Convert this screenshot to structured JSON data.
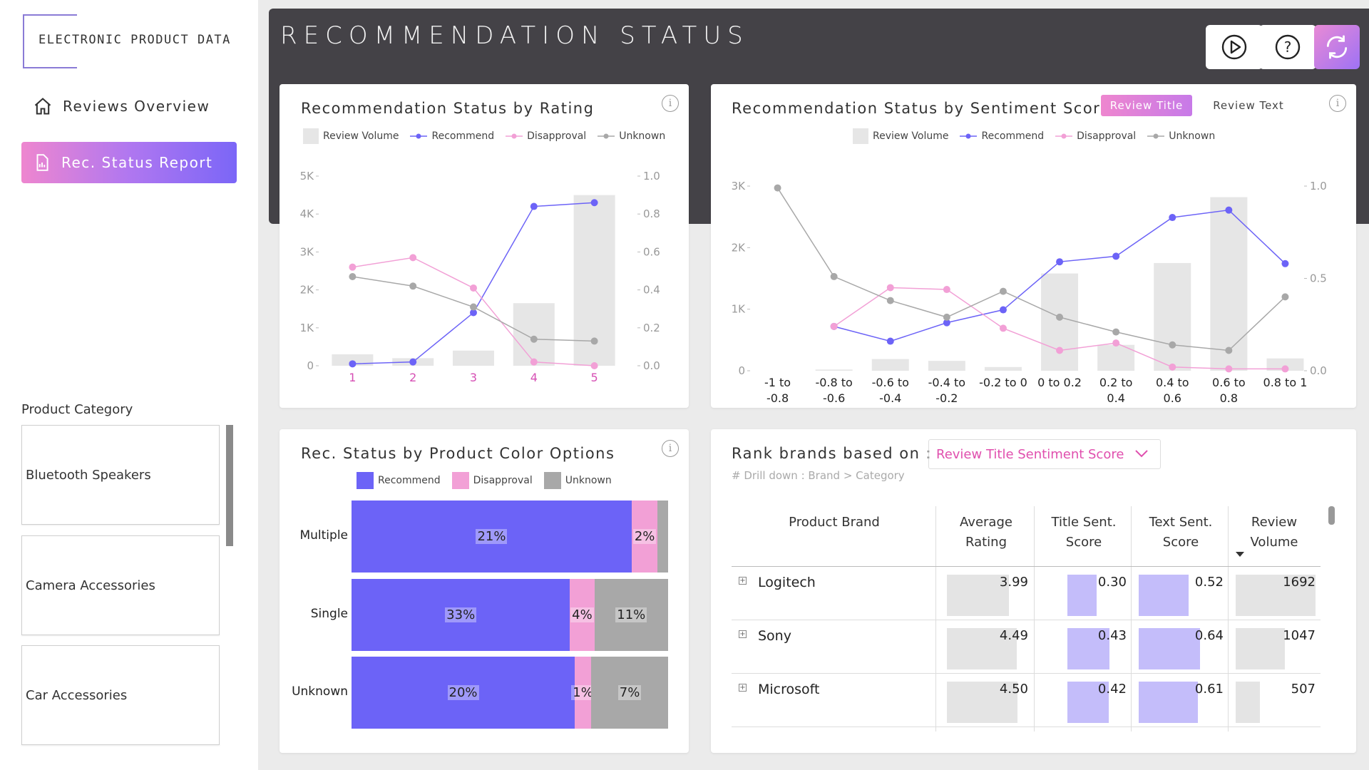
{
  "sidebar": {
    "logo_text": "ELECTRONIC PRODUCT DATA",
    "nav": [
      {
        "label": "Reviews Overview",
        "icon": "home-icon"
      },
      {
        "label": "Rec. Status Report",
        "icon": "report-icon"
      }
    ],
    "category_title": "Product Category",
    "categories": [
      "Bluetooth Speakers",
      "Camera Accessories",
      "Car Accessories"
    ]
  },
  "header": {
    "title": "RECOMMENDATION STATUS",
    "buttons": [
      "play-icon",
      "help-icon",
      "refresh-icon"
    ]
  },
  "colors": {
    "recommend": "#6c63f7",
    "disapproval": "#f2a0d6",
    "unknown": "#a8a8a8",
    "volume": "#e6e6e6",
    "accent": "#e04fae"
  },
  "legend": {
    "volume": "Review Volume",
    "recommend": "Recommend",
    "disapproval": "Disapproval",
    "unknown": "Unknown"
  },
  "chart_data": [
    {
      "id": "rating",
      "type": "bar+line",
      "title": "Recommendation Status by Rating",
      "categories": [
        "1",
        "2",
        "3",
        "4",
        "5"
      ],
      "left_axis": {
        "range": [
          0,
          5000
        ],
        "ticks": [
          "0",
          "1K",
          "2K",
          "3K",
          "4K",
          "5K"
        ]
      },
      "right_axis": {
        "range": [
          0,
          1.0
        ],
        "ticks": [
          "0.0",
          "0.2",
          "0.4",
          "0.6",
          "0.8",
          "1.0"
        ]
      },
      "series": [
        {
          "name": "Review Volume",
          "kind": "bar",
          "axis": "left",
          "values": [
            300,
            200,
            400,
            1650,
            4500
          ]
        },
        {
          "name": "Recommend",
          "kind": "line",
          "axis": "right",
          "values": [
            0.01,
            0.02,
            0.28,
            0.84,
            0.86
          ]
        },
        {
          "name": "Disapproval",
          "kind": "line",
          "axis": "right",
          "values": [
            0.52,
            0.57,
            0.41,
            0.02,
            0.0
          ]
        },
        {
          "name": "Unknown",
          "kind": "line",
          "axis": "right",
          "values": [
            0.47,
            0.42,
            0.31,
            0.14,
            0.13
          ]
        }
      ]
    },
    {
      "id": "sentiment",
      "type": "bar+line",
      "title": "Recommendation Status by Sentiment Score",
      "categories": [
        [
          "-1 to",
          "-0.8"
        ],
        [
          "-0.8 to",
          "-0.6"
        ],
        [
          "-0.6 to",
          "-0.4"
        ],
        [
          "-0.4 to",
          "-0.2"
        ],
        [
          "-0.2 to 0"
        ],
        [
          "0 to 0.2"
        ],
        [
          "0.2 to",
          "0.4"
        ],
        [
          "0.4 to",
          "0.6"
        ],
        [
          "0.6 to",
          "0.8"
        ],
        [
          "0.8 to 1"
        ]
      ],
      "left_axis": {
        "range": [
          0,
          3000
        ],
        "ticks": [
          "0",
          "1K",
          "2K",
          "3K"
        ]
      },
      "right_axis": {
        "range": [
          0,
          1.0
        ],
        "ticks": [
          "0.0",
          "0.5",
          "1.0"
        ]
      },
      "toggle": [
        "Review Title",
        "Review Text"
      ],
      "series": [
        {
          "name": "Review Volume",
          "kind": "bar",
          "axis": "left",
          "values": [
            0,
            20,
            190,
            160,
            60,
            1580,
            420,
            1750,
            2820,
            200
          ]
        },
        {
          "name": "Recommend",
          "kind": "line",
          "axis": "right",
          "values": [
            null,
            0.24,
            0.16,
            0.26,
            0.33,
            0.59,
            0.62,
            0.83,
            0.87,
            0.58
          ]
        },
        {
          "name": "Disapproval",
          "kind": "line",
          "axis": "right",
          "values": [
            null,
            0.24,
            0.45,
            0.44,
            0.23,
            0.11,
            0.15,
            0.02,
            0.01,
            0.01
          ]
        },
        {
          "name": "Unknown",
          "kind": "line",
          "axis": "right",
          "values": [
            0.99,
            0.51,
            0.38,
            0.29,
            0.43,
            0.29,
            0.21,
            0.14,
            0.11,
            0.4
          ]
        }
      ]
    },
    {
      "id": "color_options",
      "type": "stacked-bar-horizontal",
      "title": "Rec. Status by Product Color Options",
      "categories": [
        "Multiple",
        "Single",
        "Unknown"
      ],
      "series": [
        {
          "name": "Recommend",
          "values": [
            88.5,
            69,
            70.5
          ],
          "labels": [
            "21%",
            "33%",
            "20%"
          ]
        },
        {
          "name": "Disapproval",
          "values": [
            8.2,
            7.7,
            5.2
          ],
          "labels": [
            "2%",
            "4%",
            "1%"
          ]
        },
        {
          "name": "Unknown",
          "values": [
            3.3,
            23.3,
            24.3
          ],
          "labels": [
            "",
            "11%",
            "7%"
          ]
        }
      ]
    }
  ],
  "rank": {
    "label": "Rank brands based on :",
    "selected": "Review Title Sentiment Score",
    "note": "# Drill down : Brand > Category",
    "columns": [
      [
        "Product Brand"
      ],
      [
        "Average",
        "Rating"
      ],
      [
        "Title Sent.",
        "Score"
      ],
      [
        "Text Sent.",
        "Score"
      ],
      [
        "Review",
        "Volume"
      ]
    ],
    "rows": [
      {
        "brand": "Logitech",
        "avg_rating": "3.99",
        "title_sent": "0.30",
        "text_sent": "0.52",
        "volume": "1692"
      },
      {
        "brand": "Sony",
        "avg_rating": "4.49",
        "title_sent": "0.43",
        "text_sent": "0.64",
        "volume": "1047"
      },
      {
        "brand": "Microsoft",
        "avg_rating": "4.50",
        "title_sent": "0.42",
        "text_sent": "0.61",
        "volume": "507"
      }
    ],
    "bar_fractions": [
      {
        "avg_rating": 0.79,
        "title_sent": 0.55,
        "text_sent": 0.7,
        "volume": 1.0
      },
      {
        "avg_rating": 0.89,
        "title_sent": 0.78,
        "text_sent": 0.86,
        "volume": 0.62
      },
      {
        "avg_rating": 0.9,
        "title_sent": 0.77,
        "text_sent": 0.83,
        "volume": 0.3
      }
    ]
  }
}
